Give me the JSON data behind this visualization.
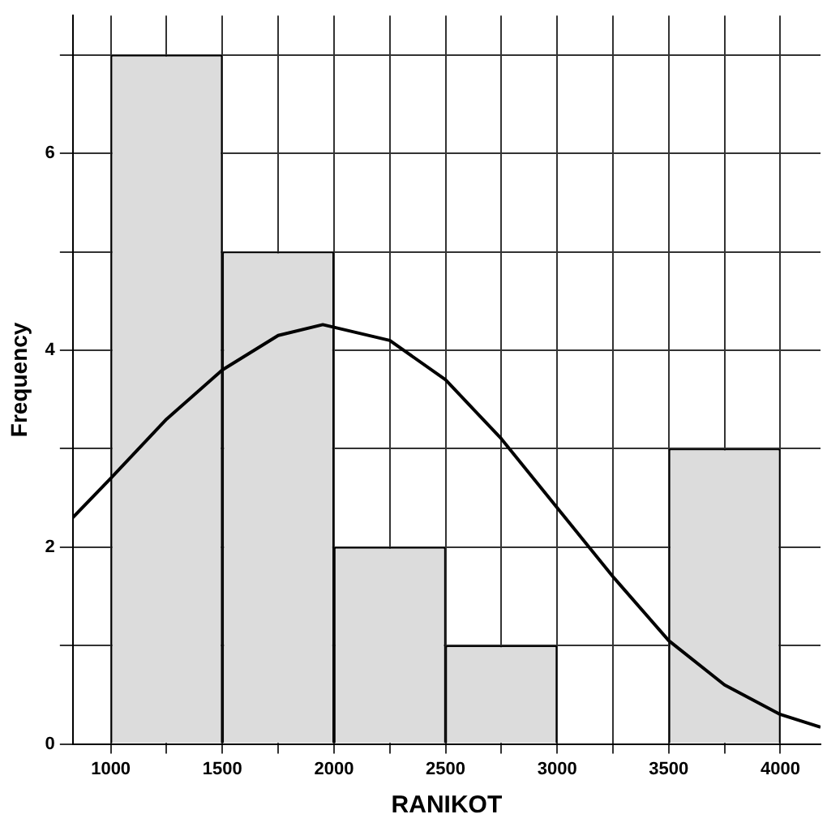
{
  "chart_data": {
    "type": "histogram",
    "xlabel": "RANIKOT",
    "ylabel": "Frequency",
    "bins": [
      1000,
      1500,
      2000,
      2500,
      3000,
      3500,
      4000
    ],
    "values": [
      7,
      5,
      2,
      1,
      0,
      3
    ],
    "color": "#dcdcdc",
    "series": [
      {
        "type": "line",
        "color": "#000000",
        "x": [
          830,
          1000,
          1250,
          1500,
          1750,
          1950,
          2250,
          2500,
          2750,
          3000,
          3250,
          3500,
          3750,
          4000,
          4180
        ],
        "values": [
          2.3,
          2.7,
          3.3,
          3.8,
          4.15,
          4.26,
          4.1,
          3.7,
          3.1,
          2.4,
          1.7,
          1.05,
          0.6,
          0.3,
          0.17
        ]
      }
    ],
    "xlim": [
      830,
      4180
    ],
    "xticks": [
      1000,
      {
        "value": 1250,
        "label": null
      },
      1500,
      {
        "value": 1750,
        "label": null
      },
      2000,
      {
        "value": 2250,
        "label": null
      },
      2500,
      {
        "value": 2750,
        "label": null
      },
      3000,
      {
        "value": 3250,
        "label": null
      },
      3500,
      {
        "value": 3750,
        "label": null
      },
      4000
    ],
    "ylim": [
      0,
      7.4
    ],
    "yticks": [
      0,
      {
        "value": 1,
        "label": null
      },
      2,
      {
        "value": 3,
        "label": null
      },
      4,
      {
        "value": 5,
        "label": null
      },
      6,
      {
        "value": 7,
        "label": null
      }
    ],
    "grid": true
  }
}
